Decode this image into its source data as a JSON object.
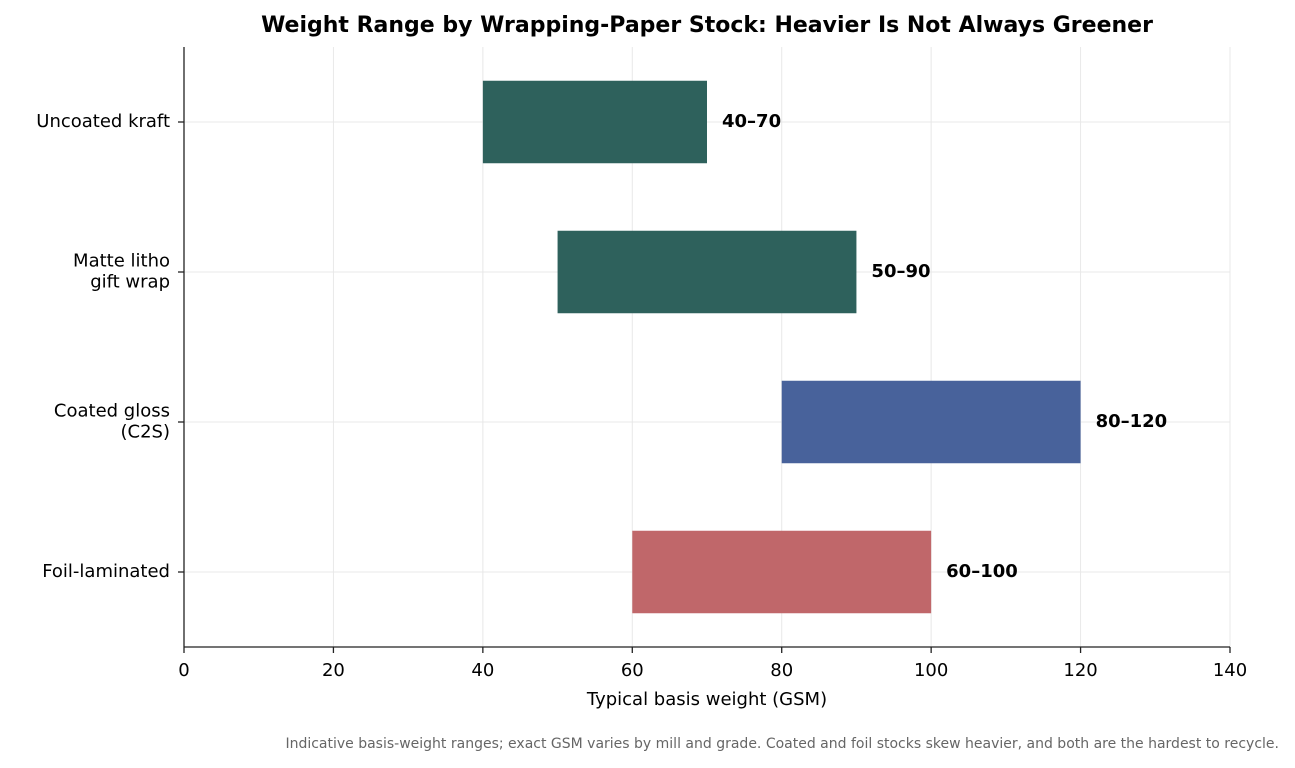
{
  "chart_data": {
    "type": "range_bar",
    "title": "Weight Range by Wrapping-Paper Stock: Heavier Is Not Always Greener",
    "xlabel": "Typical basis weight (GSM)",
    "note": "Indicative basis-weight ranges; exact GSM varies by mill and grade. Coated and foil stocks skew heavier, and both are the hardest to recycle.",
    "categories": [
      "Uncoated kraft",
      "Matte litho\ngift wrap",
      "Coated gloss\n(C2S)",
      "Foil-laminated"
    ],
    "lows": [
      40,
      50,
      80,
      60
    ],
    "highs": [
      70,
      90,
      120,
      100
    ],
    "value_labels": [
      "40–70",
      "50–90",
      "80–120",
      "60–100"
    ],
    "colors": [
      "#2e615c",
      "#2e615c",
      "#48629b",
      "#c0676a"
    ],
    "xlim": [
      0,
      140
    ],
    "xticks": [
      0,
      20,
      40,
      60,
      80,
      100,
      120,
      140
    ],
    "grid": true
  }
}
